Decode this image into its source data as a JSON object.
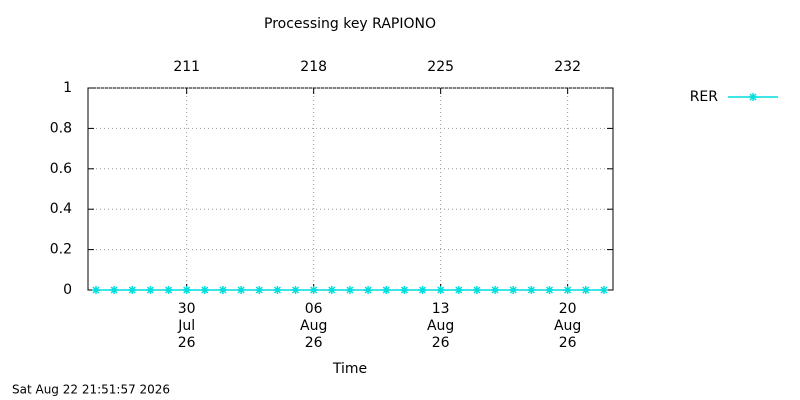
{
  "chart_data": {
    "type": "line",
    "title": "Processing key RAPIONO",
    "xlabel": "Time",
    "footer": "Sat Aug 22 21:51:57 2026",
    "x": [
      206,
      207,
      208,
      209,
      210,
      211,
      212,
      213,
      214,
      215,
      216,
      217,
      218,
      219,
      220,
      221,
      222,
      223,
      224,
      225,
      226,
      227,
      228,
      229,
      230,
      231,
      232,
      233,
      234
    ],
    "series": [
      {
        "name": "RER",
        "color": "#00dede",
        "values": [
          0,
          0,
          0,
          0,
          0,
          0,
          0,
          0,
          0,
          0,
          0,
          0,
          0,
          0,
          0,
          0,
          0,
          0,
          0,
          0,
          0,
          0,
          0,
          0,
          0,
          0,
          0,
          0,
          0
        ]
      }
    ],
    "xlim": [
      205.56,
      234.5
    ],
    "xticks": [
      {
        "value": 211,
        "label": [
          "30",
          "Jul",
          "26"
        ]
      },
      {
        "value": 218,
        "label": [
          "06",
          "Aug",
          "26"
        ]
      },
      {
        "value": 225,
        "label": [
          "13",
          "Aug",
          "26"
        ]
      },
      {
        "value": 232,
        "label": [
          "20",
          "Aug",
          "26"
        ]
      }
    ],
    "x2ticks": [
      211,
      218,
      225,
      232
    ],
    "ylim": [
      0,
      1
    ],
    "yticks": [
      0,
      0.2,
      0.4,
      0.6,
      0.8,
      1
    ],
    "grid": true,
    "legend": "outside-right"
  }
}
